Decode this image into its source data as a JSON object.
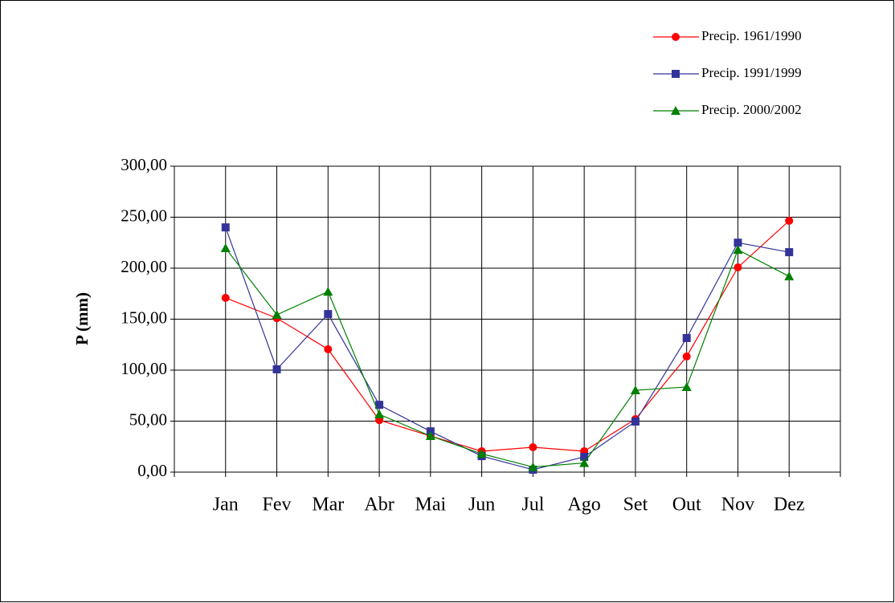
{
  "chart_data": {
    "type": "line",
    "y_label": "P (mm)",
    "categories": [
      "Jan",
      "Fev",
      "Mar",
      "Abr",
      "Mai",
      "Jun",
      "Jul",
      "Ago",
      "Set",
      "Out",
      "Nov",
      "Dez"
    ],
    "series": [
      {
        "name": "Precip. 1961/1990",
        "color": "#ff0000",
        "marker": "circle",
        "values": [
          170.9,
          151,
          120.5,
          51,
          35.4,
          20.5,
          24.4,
          20.5,
          52,
          113.4,
          200.8,
          246.5
        ]
      },
      {
        "name": "Precip. 1991/1999",
        "color": "#333399",
        "marker": "square",
        "values": [
          240,
          100.8,
          155,
          66,
          40,
          15.7,
          2.4,
          15,
          49.6,
          131.5,
          225,
          215.7
        ]
      },
      {
        "name": "Precip. 2000/2002",
        "color": "#008000",
        "marker": "triangle",
        "values": [
          219.7,
          154.3,
          177,
          56.7,
          35.4,
          18,
          5,
          9,
          80.3,
          83.5,
          218,
          192
        ]
      }
    ],
    "ylim": [
      0,
      300
    ],
    "yticks": [
      {
        "value": 0,
        "label": "0,00"
      },
      {
        "value": 50,
        "label": "50,00"
      },
      {
        "value": 100,
        "label": "100,00"
      },
      {
        "value": 150,
        "label": "150,00"
      },
      {
        "value": 200,
        "label": "200,00"
      },
      {
        "value": 250,
        "label": "250,00"
      },
      {
        "value": 300,
        "label": "300,00"
      }
    ],
    "grid": true,
    "legend": "top-right"
  }
}
